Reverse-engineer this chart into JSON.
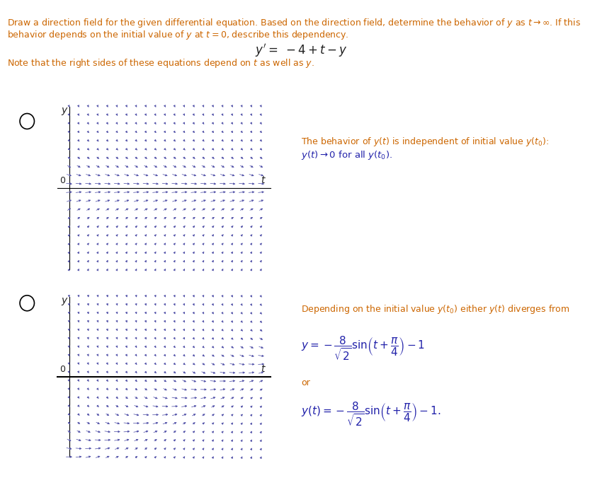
{
  "arrow_color": "#5555aa",
  "text_color_orange": "#cc6600",
  "text_color_blue": "#2222aa",
  "text_color_black": "#222222",
  "bg_color": "#ffffff",
  "xlim": [
    0,
    5
  ],
  "ylim": [
    -4,
    4
  ],
  "nx": 22,
  "ny": 20,
  "line1": "Draw a direction field for the given differential equation. Based on the direction field, determine the behavior of y as t → ∞. If this",
  "line2": "behavior depends on the initial value of y at t = 0, describe this dependency.",
  "equation_str": "$y' = -4 + t - y$",
  "note_str": "Note that the right sides of these equations depend on t as well as y.",
  "p1_right1": "The behavior of y(t) is independent of initial value y(t₀):",
  "p1_right2": "y(t) → 0 for all y(t₀).",
  "p2_right1": "Depending on the initial value y(t₀) either y(t) diverges from",
  "p2_right2_latex": "$y = -\\dfrac{8}{\\sqrt{2}}\\sin\\!\\left(t + \\dfrac{\\pi}{4}\\right) - 1$",
  "p2_right3": "or",
  "p2_right4_latex": "$y(t) = -\\dfrac{8}{\\sqrt{2}}\\sin\\!\\left(t + \\dfrac{\\pi}{4}\\right) - 1.$"
}
